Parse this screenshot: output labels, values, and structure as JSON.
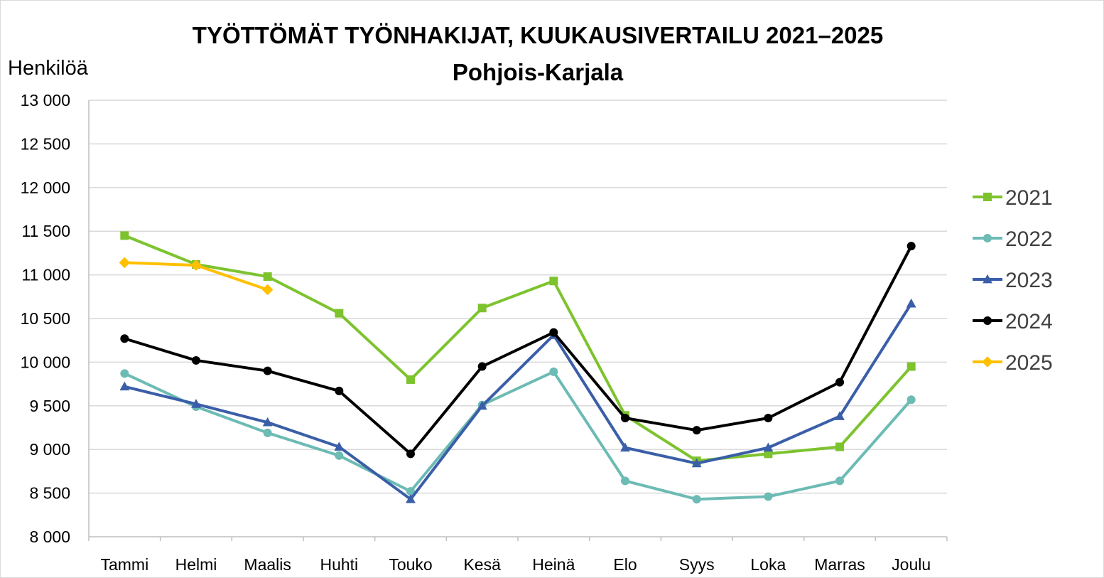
{
  "chart_data": {
    "type": "line",
    "title": "TYÖTTÖMÄT TYÖNHAKIJAT, KUUKAUSIVERTAILU 2021–2025",
    "subtitle": "Pohjois-Karjala",
    "ylabel": "Henkilöä",
    "xlabel": "",
    "ylim": [
      8000,
      13000
    ],
    "yticks": [
      8000,
      8500,
      9000,
      9500,
      10000,
      10500,
      11000,
      11500,
      12000,
      12500,
      13000
    ],
    "ytick_labels": [
      "8 000",
      "8 500",
      "9 000",
      "9 500",
      "10 000",
      "10 500",
      "11 000",
      "11 500",
      "12 000",
      "12 500",
      "13 000"
    ],
    "grid": true,
    "legend_position": "right",
    "categories": [
      "Tammi",
      "Helmi",
      "Maalis",
      "Huhti",
      "Touko",
      "Kesä",
      "Heinä",
      "Elo",
      "Syys",
      "Loka",
      "Marras",
      "Joulu"
    ],
    "series": [
      {
        "name": "2021",
        "color": "#7dc32e",
        "marker": "square",
        "values": [
          11450,
          11120,
          10980,
          10560,
          9800,
          10620,
          10930,
          9390,
          8870,
          8950,
          9030,
          9950
        ]
      },
      {
        "name": "2022",
        "color": "#6cbbb4",
        "marker": "circle",
        "values": [
          9870,
          9490,
          9190,
          8930,
          8520,
          9510,
          9890,
          8640,
          8430,
          8460,
          8640,
          9570
        ]
      },
      {
        "name": "2023",
        "color": "#3a5ea8",
        "marker": "triangle",
        "values": [
          9720,
          9520,
          9310,
          9030,
          8430,
          9500,
          10310,
          9020,
          8840,
          9020,
          9380,
          10670
        ]
      },
      {
        "name": "2024",
        "color": "#000000",
        "marker": "circle",
        "values": [
          10270,
          10020,
          9900,
          9670,
          8950,
          9950,
          10340,
          9360,
          9220,
          9360,
          9770,
          11330
        ]
      },
      {
        "name": "2025",
        "color": "#ffc000",
        "marker": "diamond",
        "values": [
          11140,
          11110,
          10830,
          null,
          null,
          null,
          null,
          null,
          null,
          null,
          null,
          null
        ]
      }
    ]
  }
}
